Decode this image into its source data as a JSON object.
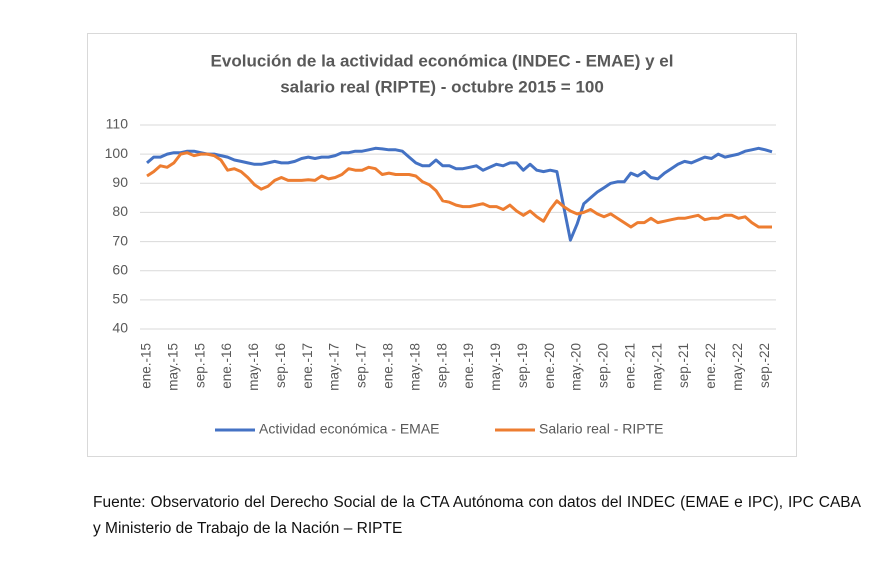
{
  "chart_data": {
    "type": "line",
    "title": [
      "Evolución de la actividad económica (INDEC - EMAE) y el",
      "salario real (RIPTE) - octubre 2015 = 100"
    ],
    "categories": [
      "ene.-15",
      null,
      null,
      null,
      "may.-15",
      null,
      null,
      null,
      "sep.-15",
      null,
      null,
      null,
      "ene.-16",
      null,
      null,
      null,
      "may.-16",
      null,
      null,
      null,
      "sep.-16",
      null,
      null,
      null,
      "ene.-17",
      null,
      null,
      null,
      "may.-17",
      null,
      null,
      null,
      "sep.-17",
      null,
      null,
      null,
      "ene.-18",
      null,
      null,
      null,
      "may.-18",
      null,
      null,
      null,
      "sep.-18",
      null,
      null,
      null,
      "ene.-19",
      null,
      null,
      null,
      "may.-19",
      null,
      null,
      null,
      "sep.-19",
      null,
      null,
      null,
      "ene.-20",
      null,
      null,
      null,
      "may.-20",
      null,
      null,
      null,
      "sep.-20",
      null,
      null,
      null,
      "ene.-21",
      null,
      null,
      null,
      "may.-21",
      null,
      null,
      null,
      "sep.-21",
      null,
      null,
      null,
      "ene.-22",
      null,
      null,
      null,
      "may.-22",
      null,
      null,
      null,
      "sep.-22",
      null
    ],
    "series": [
      {
        "name": "Actividad económica - EMAE",
        "color": "#4472c4",
        "values": [
          97,
          99,
          99,
          100,
          100.5,
          100.5,
          101,
          101,
          100.5,
          100,
          100,
          99.5,
          99,
          98,
          97.5,
          97,
          96.5,
          96.5,
          97,
          97.5,
          97,
          97,
          97.5,
          98.5,
          99,
          98.5,
          99,
          99,
          99.5,
          100.5,
          100.5,
          101,
          101,
          101.5,
          102,
          101.8,
          101.5,
          101.5,
          101,
          99,
          97,
          96,
          96,
          98,
          96,
          96,
          95,
          95,
          95.5,
          96,
          94.5,
          95.5,
          96.5,
          96,
          97,
          97,
          94.5,
          96.5,
          94.5,
          94,
          94.5,
          94,
          82,
          70.5,
          76,
          83,
          85,
          87,
          88.5,
          90,
          90.5,
          90.5,
          93.5,
          92.5,
          94,
          92,
          91.5,
          93.5,
          95,
          96.5,
          97.5,
          97,
          98,
          99,
          98.5,
          100,
          99,
          99.5,
          100,
          101,
          101.5,
          102,
          101.5,
          100.8
        ]
      },
      {
        "name": "Salario real - RIPTE",
        "color": "#ed7d31",
        "values": [
          92.5,
          94,
          96,
          95.5,
          97,
          100,
          100.5,
          99.5,
          100,
          100,
          99.5,
          98,
          94.5,
          95,
          94,
          92,
          89.5,
          88,
          89,
          91,
          92,
          91,
          91,
          91,
          91.2,
          91,
          92.5,
          91.5,
          92,
          93,
          95,
          94.5,
          94.5,
          95.5,
          95,
          93,
          93.5,
          93,
          93,
          93,
          92.5,
          90.5,
          89.5,
          87.5,
          84,
          83.5,
          82.5,
          82,
          82,
          82.5,
          83,
          82,
          82,
          81,
          82.5,
          80.5,
          79,
          80.5,
          78.5,
          77,
          81,
          84,
          82,
          80.5,
          79.5,
          80,
          81,
          79.5,
          78.5,
          79.5,
          78,
          76.5,
          75,
          76.5,
          76.5,
          78,
          76.5,
          77,
          77.5,
          78,
          78,
          78.5,
          79,
          77.5,
          78,
          78,
          79,
          79,
          78,
          78.5,
          76.5,
          75,
          75,
          75
        ]
      }
    ],
    "ylim": [
      40,
      110
    ],
    "yticks": [
      40,
      50,
      60,
      70,
      80,
      90,
      100,
      110
    ],
    "grid": true,
    "legend": "bottom"
  },
  "source": "Fuente: Observatorio del Derecho Social de la CTA Autónoma con datos del INDEC (EMAE e IPC), IPC CABA y Ministerio de Trabajo de la Nación – RIPTE"
}
